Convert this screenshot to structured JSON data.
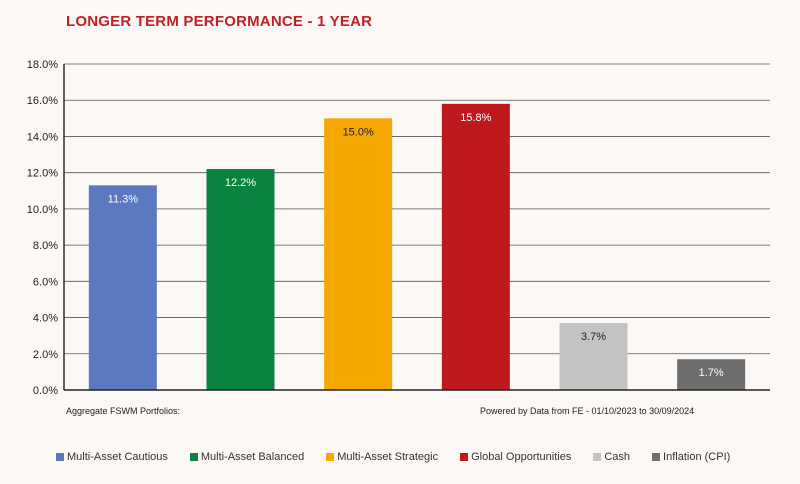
{
  "title": "LONGER TERM PERFORMANCE - 1 YEAR",
  "footnote_left": "Aggregate FSWM Portfolios:",
  "footnote_right": "Powered by Data from FE - 01/10/2023 to 30/09/2024",
  "chart_data": {
    "type": "bar",
    "title": "LONGER TERM PERFORMANCE - 1 YEAR",
    "xlabel": "",
    "ylabel": "",
    "ylim": [
      0,
      18
    ],
    "yticks": [
      "0.0%",
      "2.0%",
      "4.0%",
      "6.0%",
      "8.0%",
      "10.0%",
      "12.0%",
      "14.0%",
      "16.0%",
      "18.0%"
    ],
    "grid": true,
    "legend_position": "bottom",
    "categories": [
      "Multi-Asset Cautious",
      "Multi-Asset Balanced",
      "Multi-Asset Strategic",
      "Global Opportunities",
      "Cash",
      "Inflation (CPI)"
    ],
    "values": [
      11.3,
      12.2,
      15.0,
      15.8,
      3.7,
      1.7
    ],
    "data_labels": [
      "11.3%",
      "12.2%",
      "15.0%",
      "15.8%",
      "3.7%",
      "1.7%"
    ],
    "colors": [
      "#5b78c0",
      "#088440",
      "#f5a800",
      "#c0191d",
      "#c3c3c3",
      "#6e6e6e"
    ],
    "label_colors": [
      "#ffffff",
      "#ffffff",
      "#222222",
      "#ffffff",
      "#222222",
      "#ffffff"
    ]
  }
}
